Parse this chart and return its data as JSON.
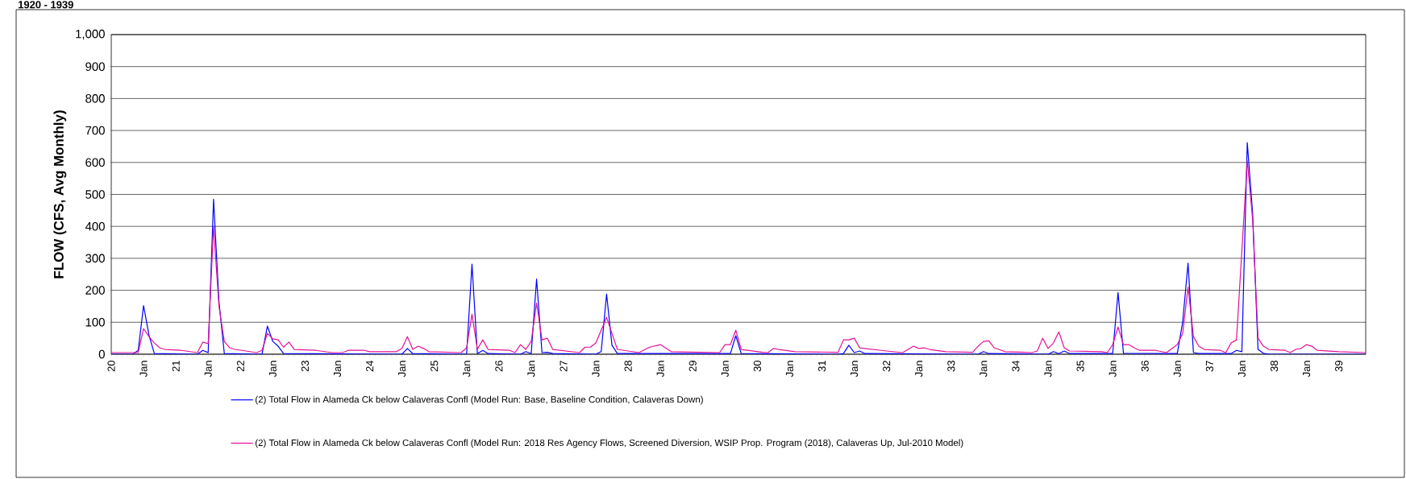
{
  "chart_data": {
    "type": "line",
    "annotations": [
      "1920 - 1939"
    ],
    "ylabel": "FLOW (CFS, Avg Monthly)",
    "xlim": [
      "1920-07",
      "1939-12"
    ],
    "xticks": [
      {
        "value": "1920-07",
        "label": "20"
      },
      {
        "value": "1921-01",
        "label": "Jan"
      },
      {
        "value": "1921-07",
        "label": "21"
      },
      {
        "value": "1922-01",
        "label": "Jan"
      },
      {
        "value": "1922-07",
        "label": "22"
      },
      {
        "value": "1923-01",
        "label": "Jan"
      },
      {
        "value": "1923-07",
        "label": "23"
      },
      {
        "value": "1924-01",
        "label": "Jan"
      },
      {
        "value": "1924-07",
        "label": "24"
      },
      {
        "value": "1925-01",
        "label": "Jan"
      },
      {
        "value": "1925-07",
        "label": "25"
      },
      {
        "value": "1926-01",
        "label": "Jan"
      },
      {
        "value": "1926-07",
        "label": "26"
      },
      {
        "value": "1927-01",
        "label": "Jan"
      },
      {
        "value": "1927-07",
        "label": "27"
      },
      {
        "value": "1928-01",
        "label": "Jan"
      },
      {
        "value": "1928-07",
        "label": "28"
      },
      {
        "value": "1929-01",
        "label": "Jan"
      },
      {
        "value": "1929-07",
        "label": "29"
      },
      {
        "value": "1930-01",
        "label": "Jan"
      },
      {
        "value": "1930-07",
        "label": "30"
      },
      {
        "value": "1931-01",
        "label": "Jan"
      },
      {
        "value": "1931-07",
        "label": "31"
      },
      {
        "value": "1932-01",
        "label": "Jan"
      },
      {
        "value": "1932-07",
        "label": "32"
      },
      {
        "value": "1933-01",
        "label": "Jan"
      },
      {
        "value": "1933-07",
        "label": "33"
      },
      {
        "value": "1934-01",
        "label": "Jan"
      },
      {
        "value": "1934-07",
        "label": "34"
      },
      {
        "value": "1935-01",
        "label": "Jan"
      },
      {
        "value": "1935-07",
        "label": "35"
      },
      {
        "value": "1936-01",
        "label": "Jan"
      },
      {
        "value": "1936-07",
        "label": "36"
      },
      {
        "value": "1937-01",
        "label": "Jan"
      },
      {
        "value": "1937-07",
        "label": "37"
      },
      {
        "value": "1938-01",
        "label": "Jan"
      },
      {
        "value": "1938-07",
        "label": "38"
      },
      {
        "value": "1939-01",
        "label": "Jan"
      },
      {
        "value": "1939-07",
        "label": "39"
      }
    ],
    "ylim": [
      0,
      1000
    ],
    "yticks": [
      0,
      100,
      200,
      300,
      400,
      500,
      600,
      700,
      800,
      900,
      {
        "value": 1000,
        "label": "1,000"
      }
    ],
    "grid": "y",
    "legend": "bottom",
    "marker": "none",
    "line_style": "solid",
    "series": [
      {
        "name": "(2) Total Flow in Alameda Ck below Calaveras Confl (Model Run: Base, Baseline Condition, Calaveras Down)",
        "color": "#0000ff",
        "x": [
          "1920-07",
          "1920-11",
          "1920-12",
          "1921-01",
          "1921-02",
          "1921-03",
          "1921-11",
          "1921-12",
          "1922-01",
          "1922-02",
          "1922-03",
          "1922-04",
          "1922-11",
          "1922-12",
          "1923-01",
          "1923-02",
          "1923-03",
          "1925-01",
          "1925-02",
          "1925-03",
          "1926-01",
          "1926-02",
          "1926-03",
          "1926-04",
          "1926-05",
          "1926-11",
          "1926-12",
          "1927-01",
          "1927-02",
          "1927-03",
          "1927-04",
          "1927-05",
          "1928-01",
          "1928-02",
          "1928-03",
          "1928-04",
          "1928-05",
          "1930-02",
          "1930-03",
          "1930-04",
          "1931-10",
          "1931-11",
          "1931-12",
          "1932-01",
          "1932-02",
          "1932-03",
          "1933-12",
          "1934-01",
          "1934-02",
          "1935-01",
          "1935-02",
          "1935-03",
          "1935-04",
          "1935-05",
          "1936-01",
          "1936-02",
          "1936-03",
          "1937-01",
          "1937-02",
          "1937-03",
          "1937-04",
          "1937-05",
          "1937-11",
          "1937-12",
          "1938-01",
          "1938-02",
          "1938-03",
          "1938-04",
          "1938-05",
          "1938-06",
          "1939-12"
        ],
        "values": [
          0,
          0,
          12,
          152,
          60,
          2,
          0,
          12,
          5,
          485,
          165,
          2,
          0,
          88,
          40,
          25,
          2,
          0,
          18,
          2,
          0,
          282,
          2,
          12,
          2,
          0,
          8,
          2,
          235,
          5,
          6,
          2,
          0,
          8,
          188,
          28,
          2,
          2,
          58,
          2,
          0,
          2,
          28,
          5,
          10,
          2,
          0,
          8,
          2,
          0,
          8,
          2,
          10,
          2,
          2,
          193,
          3,
          2,
          100,
          285,
          5,
          2,
          2,
          12,
          8,
          662,
          440,
          15,
          3,
          0,
          0
        ]
      },
      {
        "name": "(2) Total Flow in Alameda Ck below Calaveras Confl (Model Run: 2018 Res Agency Flows, Screened Diversion, WSIP Prop. Program (2018), Calaveras Up, Jul-2010 Model)",
        "color": "#e4119b",
        "x": [
          "1920-07",
          "1920-12",
          "1921-01",
          "1921-02",
          "1921-03",
          "1921-04",
          "1921-05",
          "1921-08",
          "1921-11",
          "1921-12",
          "1922-01",
          "1922-02",
          "1922-03",
          "1922-04",
          "1922-05",
          "1922-06",
          "1922-10",
          "1922-11",
          "1922-12",
          "1923-01",
          "1923-02",
          "1923-03",
          "1923-04",
          "1923-05",
          "1923-09",
          "1923-12",
          "1924-02",
          "1924-03",
          "1924-06",
          "1924-07",
          "1924-12",
          "1925-01",
          "1925-02",
          "1925-03",
          "1925-04",
          "1925-05",
          "1925-06",
          "1925-12",
          "1926-01",
          "1926-02",
          "1926-03",
          "1926-04",
          "1926-05",
          "1926-09",
          "1926-10",
          "1926-11",
          "1926-12",
          "1927-01",
          "1927-02",
          "1927-03",
          "1927-04",
          "1927-05",
          "1927-10",
          "1927-11",
          "1927-12",
          "1928-01",
          "1928-03",
          "1928-04",
          "1928-05",
          "1928-09",
          "1928-11",
          "1929-01",
          "1929-03",
          "1929-12",
          "1930-01",
          "1930-02",
          "1930-03",
          "1930-04",
          "1930-08",
          "1930-09",
          "1930-10",
          "1930-11",
          "1931-02",
          "1931-10",
          "1931-11",
          "1931-12",
          "1932-01",
          "1932-02",
          "1932-07",
          "1932-10",
          "1932-12",
          "1933-01",
          "1933-02",
          "1933-03",
          "1933-06",
          "1933-11",
          "1933-12",
          "1934-01",
          "1934-02",
          "1934-03",
          "1934-05",
          "1934-10",
          "1934-11",
          "1934-12",
          "1935-01",
          "1935-02",
          "1935-03",
          "1935-04",
          "1935-05",
          "1935-11",
          "1935-12",
          "1936-01",
          "1936-02",
          "1936-03",
          "1936-04",
          "1936-05",
          "1936-06",
          "1936-09",
          "1936-11",
          "1937-01",
          "1937-02",
          "1937-03",
          "1937-04",
          "1937-05",
          "1937-06",
          "1937-09",
          "1937-10",
          "1937-11",
          "1937-12",
          "1938-02",
          "1938-03",
          "1938-04",
          "1938-05",
          "1938-06",
          "1938-09",
          "1938-10",
          "1938-11",
          "1938-12",
          "1939-01",
          "1939-02",
          "1939-03",
          "1939-07",
          "1939-12"
        ],
        "values": [
          5,
          5,
          80,
          55,
          35,
          20,
          15,
          12,
          5,
          38,
          33,
          400,
          150,
          40,
          20,
          15,
          5,
          12,
          65,
          48,
          45,
          22,
          38,
          15,
          12,
          5,
          5,
          12,
          12,
          8,
          8,
          18,
          55,
          15,
          25,
          18,
          8,
          5,
          20,
          125,
          15,
          45,
          15,
          12,
          5,
          30,
          15,
          40,
          160,
          45,
          50,
          15,
          5,
          22,
          22,
          35,
          115,
          65,
          15,
          5,
          22,
          30,
          8,
          5,
          30,
          30,
          75,
          15,
          6,
          5,
          18,
          15,
          8,
          6,
          45,
          45,
          50,
          20,
          10,
          5,
          25,
          18,
          20,
          15,
          8,
          6,
          25,
          40,
          42,
          20,
          8,
          5,
          10,
          50,
          18,
          35,
          70,
          20,
          10,
          8,
          5,
          30,
          85,
          30,
          30,
          20,
          12,
          12,
          5,
          30,
          65,
          210,
          55,
          25,
          15,
          12,
          5,
          35,
          45,
          605,
          420,
          50,
          25,
          15,
          12,
          5,
          15,
          18,
          30,
          25,
          12,
          8,
          5
        ]
      }
    ]
  }
}
